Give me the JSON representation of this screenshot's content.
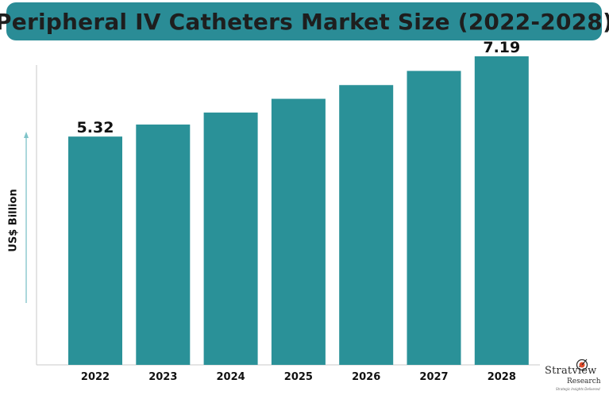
{
  "chart_data": {
    "type": "bar",
    "title": "Peripheral IV Catheters Market Size (2022-2028)",
    "ylabel": "US$ Billion",
    "xlabel": "",
    "categories": [
      "2022",
      "2023",
      "2024",
      "2025",
      "2026",
      "2027",
      "2028"
    ],
    "values": [
      5.32,
      5.6,
      5.88,
      6.2,
      6.52,
      6.85,
      7.19
    ],
    "data_labels": [
      "5.32",
      "",
      "",
      "",
      "",
      "",
      "7.19"
    ],
    "ylim": [
      0,
      7.8
    ],
    "grid": false,
    "bar_color": "#2a9198"
  },
  "logo": {
    "brand": "Stratview",
    "sub": "Research",
    "tagline": "Strategic Insights Delivered"
  },
  "colors": {
    "banner": "#2a8c96",
    "bars": "#2a9198",
    "axis": "#c8c8c8",
    "arrow": "#7fc4c9"
  }
}
